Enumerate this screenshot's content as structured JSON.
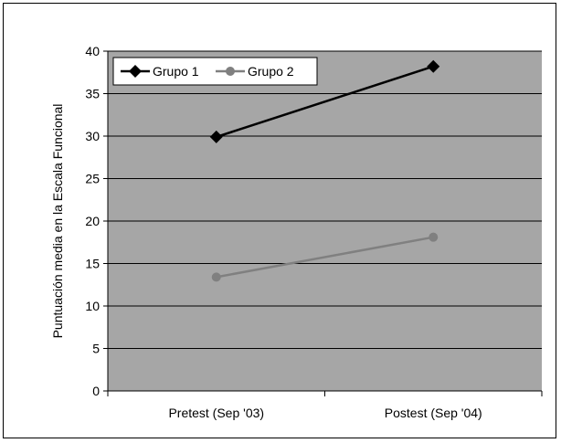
{
  "chart_data": {
    "type": "line",
    "title": "",
    "xlabel": "",
    "ylabel": "Puntuación media en la Escala Funcional",
    "categories": [
      "Pretest (Sep '03)",
      "Postest (Sep '04)"
    ],
    "ylim": [
      0,
      40
    ],
    "yticks": [
      "0",
      "5",
      "10",
      "15",
      "20",
      "25",
      "30",
      "35",
      "40"
    ],
    "grid": true,
    "legend_position": "top-left",
    "plot_background": "#a6a6a6",
    "series": [
      {
        "name": "Grupo 1",
        "values": [
          29.9,
          38.2
        ],
        "color": "#000000",
        "marker": "diamond"
      },
      {
        "name": "Grupo 2",
        "values": [
          13.4,
          18.1
        ],
        "color": "#808080",
        "marker": "circle"
      }
    ]
  }
}
